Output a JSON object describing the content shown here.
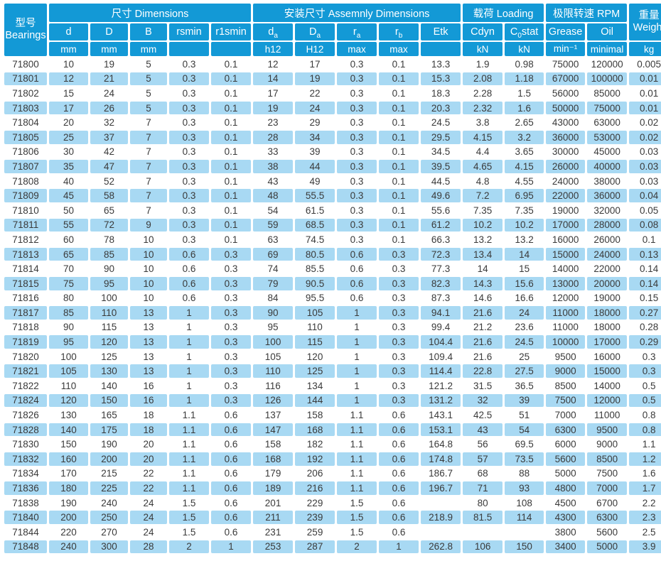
{
  "colors": {
    "header_blue": "#1399d6",
    "row_alt_blue": "#a8d9f3",
    "row_white": "#ffffff",
    "text_dark": "#3a3a3a",
    "header_text": "#ffffff"
  },
  "table": {
    "bearings_header": {
      "zh": "型号",
      "en": "Bearings"
    },
    "groups": [
      {
        "label": "尺寸 Dimensions",
        "span": 5
      },
      {
        "label": "安装尺寸 Assemnly Dimensions",
        "span": 5
      },
      {
        "label": "载荷 Loading",
        "span": 2
      },
      {
        "label": "极限转速 RPM",
        "span": 2
      }
    ],
    "weight_header": {
      "zh": "重量",
      "en": "Weight"
    },
    "weight_unit": "kg",
    "columns": [
      {
        "main": "d",
        "sub": "",
        "rest": "",
        "unit": "mm"
      },
      {
        "main": "D",
        "sub": "",
        "rest": "",
        "unit": "mm"
      },
      {
        "main": "B",
        "sub": "",
        "rest": "",
        "unit": "mm"
      },
      {
        "main": "rsmin",
        "sub": "",
        "rest": "",
        "unit": ""
      },
      {
        "main": "r1smin",
        "sub": "",
        "rest": "",
        "unit": ""
      },
      {
        "main": "d",
        "sub": "a",
        "rest": "",
        "unit": "h12"
      },
      {
        "main": "D",
        "sub": "a",
        "rest": "",
        "unit": "H12"
      },
      {
        "main": "r",
        "sub": "a",
        "rest": "",
        "unit": "max"
      },
      {
        "main": "r",
        "sub": "b",
        "rest": "",
        "unit": "max"
      },
      {
        "main": "Etk",
        "sub": "",
        "rest": "",
        "unit": ""
      },
      {
        "main": "Cdyn",
        "sub": "",
        "rest": "",
        "unit": "kN"
      },
      {
        "main": "C",
        "sub": "0",
        "rest": "stat",
        "unit": "kN"
      },
      {
        "main": "Grease",
        "sub": "",
        "rest": "",
        "unit": "min⁻¹"
      },
      {
        "main": "Oil",
        "sub": "",
        "rest": "",
        "unit": "minimal"
      }
    ],
    "rows": [
      [
        "71800",
        "10",
        "19",
        "5",
        "0.3",
        "0.1",
        "12",
        "17",
        "0.3",
        "0.1",
        "13.3",
        "1.9",
        "0.98",
        "75000",
        "120000",
        "0.005"
      ],
      [
        "71801",
        "12",
        "21",
        "5",
        "0.3",
        "0.1",
        "14",
        "19",
        "0.3",
        "0.1",
        "15.3",
        "2.08",
        "1.18",
        "67000",
        "100000",
        "0.01"
      ],
      [
        "71802",
        "15",
        "24",
        "5",
        "0.3",
        "0.1",
        "17",
        "22",
        "0.3",
        "0.1",
        "18.3",
        "2.28",
        "1.5",
        "56000",
        "85000",
        "0.01"
      ],
      [
        "71803",
        "17",
        "26",
        "5",
        "0.3",
        "0.1",
        "19",
        "24",
        "0.3",
        "0.1",
        "20.3",
        "2.32",
        "1.6",
        "50000",
        "75000",
        "0.01"
      ],
      [
        "71804",
        "20",
        "32",
        "7",
        "0.3",
        "0.1",
        "23",
        "29",
        "0.3",
        "0.1",
        "24.5",
        "3.8",
        "2.65",
        "43000",
        "63000",
        "0.02"
      ],
      [
        "71805",
        "25",
        "37",
        "7",
        "0.3",
        "0.1",
        "28",
        "34",
        "0.3",
        "0.1",
        "29.5",
        "4.15",
        "3.2",
        "36000",
        "53000",
        "0.02"
      ],
      [
        "71806",
        "30",
        "42",
        "7",
        "0.3",
        "0.1",
        "33",
        "39",
        "0.3",
        "0.1",
        "34.5",
        "4.4",
        "3.65",
        "30000",
        "45000",
        "0.03"
      ],
      [
        "71807",
        "35",
        "47",
        "7",
        "0.3",
        "0.1",
        "38",
        "44",
        "0.3",
        "0.1",
        "39.5",
        "4.65",
        "4.15",
        "26000",
        "40000",
        "0.03"
      ],
      [
        "71808",
        "40",
        "52",
        "7",
        "0.3",
        "0.1",
        "43",
        "49",
        "0.3",
        "0.1",
        "44.5",
        "4.8",
        "4.55",
        "24000",
        "38000",
        "0.03"
      ],
      [
        "71809",
        "45",
        "58",
        "7",
        "0.3",
        "0.1",
        "48",
        "55.5",
        "0.3",
        "0.1",
        "49.6",
        "7.2",
        "6.95",
        "22000",
        "36000",
        "0.04"
      ],
      [
        "71810",
        "50",
        "65",
        "7",
        "0.3",
        "0.1",
        "54",
        "61.5",
        "0.3",
        "0.1",
        "55.6",
        "7.35",
        "7.35",
        "19000",
        "32000",
        "0.05"
      ],
      [
        "71811",
        "55",
        "72",
        "9",
        "0.3",
        "0.1",
        "59",
        "68.5",
        "0.3",
        "0.1",
        "61.2",
        "10.2",
        "10.2",
        "17000",
        "28000",
        "0.08"
      ],
      [
        "71812",
        "60",
        "78",
        "10",
        "0.3",
        "0.1",
        "63",
        "74.5",
        "0.3",
        "0.1",
        "66.3",
        "13.2",
        "13.2",
        "16000",
        "26000",
        "0.1"
      ],
      [
        "71813",
        "65",
        "85",
        "10",
        "0.6",
        "0.3",
        "69",
        "80.5",
        "0.6",
        "0.3",
        "72.3",
        "13.4",
        "14",
        "15000",
        "24000",
        "0.13"
      ],
      [
        "71814",
        "70",
        "90",
        "10",
        "0.6",
        "0.3",
        "74",
        "85.5",
        "0.6",
        "0.3",
        "77.3",
        "14",
        "15",
        "14000",
        "22000",
        "0.14"
      ],
      [
        "71815",
        "75",
        "95",
        "10",
        "0.6",
        "0.3",
        "79",
        "90.5",
        "0.6",
        "0.3",
        "82.3",
        "14.3",
        "15.6",
        "13000",
        "20000",
        "0.14"
      ],
      [
        "71816",
        "80",
        "100",
        "10",
        "0.6",
        "0.3",
        "84",
        "95.5",
        "0.6",
        "0.3",
        "87.3",
        "14.6",
        "16.6",
        "12000",
        "19000",
        "0.15"
      ],
      [
        "71817",
        "85",
        "110",
        "13",
        "1",
        "0.3",
        "90",
        "105",
        "1",
        "0.3",
        "94.1",
        "21.6",
        "24",
        "11000",
        "18000",
        "0.27"
      ],
      [
        "71818",
        "90",
        "115",
        "13",
        "1",
        "0.3",
        "95",
        "110",
        "1",
        "0.3",
        "99.4",
        "21.2",
        "23.6",
        "11000",
        "18000",
        "0.28"
      ],
      [
        "71819",
        "95",
        "120",
        "13",
        "1",
        "0.3",
        "100",
        "115",
        "1",
        "0.3",
        "104.4",
        "21.6",
        "24.5",
        "10000",
        "17000",
        "0.29"
      ],
      [
        "71820",
        "100",
        "125",
        "13",
        "1",
        "0.3",
        "105",
        "120",
        "1",
        "0.3",
        "109.4",
        "21.6",
        "25",
        "9500",
        "16000",
        "0.3"
      ],
      [
        "71821",
        "105",
        "130",
        "13",
        "1",
        "0.3",
        "110",
        "125",
        "1",
        "0.3",
        "114.4",
        "22.8",
        "27.5",
        "9000",
        "15000",
        "0.3"
      ],
      [
        "71822",
        "110",
        "140",
        "16",
        "1",
        "0.3",
        "116",
        "134",
        "1",
        "0.3",
        "121.2",
        "31.5",
        "36.5",
        "8500",
        "14000",
        "0.5"
      ],
      [
        "71824",
        "120",
        "150",
        "16",
        "1",
        "0.3",
        "126",
        "144",
        "1",
        "0.3",
        "131.2",
        "32",
        "39",
        "7500",
        "12000",
        "0.5"
      ],
      [
        "71826",
        "130",
        "165",
        "18",
        "1.1",
        "0.6",
        "137",
        "158",
        "1.1",
        "0.6",
        "143.1",
        "42.5",
        "51",
        "7000",
        "11000",
        "0.8"
      ],
      [
        "71828",
        "140",
        "175",
        "18",
        "1.1",
        "0.6",
        "147",
        "168",
        "1.1",
        "0.6",
        "153.1",
        "43",
        "54",
        "6300",
        "9500",
        "0.8"
      ],
      [
        "71830",
        "150",
        "190",
        "20",
        "1.1",
        "0.6",
        "158",
        "182",
        "1.1",
        "0.6",
        "164.8",
        "56",
        "69.5",
        "6000",
        "9000",
        "1.1"
      ],
      [
        "71832",
        "160",
        "200",
        "20",
        "1.1",
        "0.6",
        "168",
        "192",
        "1.1",
        "0.6",
        "174.8",
        "57",
        "73.5",
        "5600",
        "8500",
        "1.2"
      ],
      [
        "71834",
        "170",
        "215",
        "22",
        "1.1",
        "0.6",
        "179",
        "206",
        "1.1",
        "0.6",
        "186.7",
        "68",
        "88",
        "5000",
        "7500",
        "1.6"
      ],
      [
        "71836",
        "180",
        "225",
        "22",
        "1.1",
        "0.6",
        "189",
        "216",
        "1.1",
        "0.6",
        "196.7",
        "71",
        "93",
        "4800",
        "7000",
        "1.7"
      ],
      [
        "71838",
        "190",
        "240",
        "24",
        "1.5",
        "0.6",
        "201",
        "229",
        "1.5",
        "0.6",
        "",
        "80",
        "108",
        "4500",
        "6700",
        "2.2"
      ],
      [
        "71840",
        "200",
        "250",
        "24",
        "1.5",
        "0.6",
        "211",
        "239",
        "1.5",
        "0.6",
        "218.9",
        "81.5",
        "114",
        "4300",
        "6300",
        "2.3"
      ],
      [
        "71844",
        "220",
        "270",
        "24",
        "1.5",
        "0.6",
        "231",
        "259",
        "1.5",
        "0.6",
        "",
        "",
        "",
        "3800",
        "5600",
        "2.5"
      ],
      [
        "71848",
        "240",
        "300",
        "28",
        "2",
        "1",
        "253",
        "287",
        "2",
        "1",
        "262.8",
        "106",
        "150",
        "3400",
        "5000",
        "3.9"
      ]
    ]
  }
}
